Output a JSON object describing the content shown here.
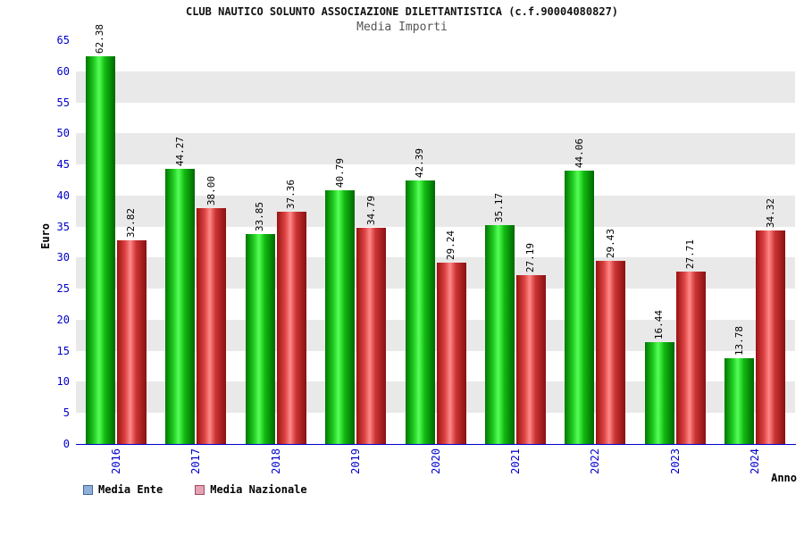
{
  "title": "CLUB NAUTICO SOLUNTO ASSOCIAZIONE DILETTANTISTICA (c.f.90004080827)",
  "subtitle": "Media Importi",
  "axes": {
    "y_label": "Euro",
    "x_label": "Anno",
    "tick_color": "#0000cc",
    "axis_line_color": "#0000cc"
  },
  "legend": [
    {
      "label": "Media Ente",
      "swatch_fill": "#8fb0d8",
      "swatch_border": "#44669a"
    },
    {
      "label": "Media Nazionale",
      "swatch_fill": "#e3a3b3",
      "swatch_border": "#a04a62"
    }
  ],
  "chart_data": {
    "type": "bar",
    "categories": [
      "2016",
      "2017",
      "2018",
      "2019",
      "2020",
      "2021",
      "2022",
      "2023",
      "2024"
    ],
    "series": [
      {
        "name": "Media Ente",
        "color": "#00cc00",
        "values": [
          62.38,
          44.27,
          33.85,
          40.79,
          42.39,
          35.17,
          44.06,
          16.44,
          13.78
        ]
      },
      {
        "name": "Media Nazionale",
        "color": "#dd4444",
        "values": [
          32.82,
          38.0,
          37.36,
          34.79,
          29.24,
          27.19,
          29.43,
          27.71,
          34.32
        ]
      }
    ],
    "title": "Media Importi",
    "xlabel": "Anno",
    "ylabel": "Euro",
    "ylim": [
      0,
      65
    ],
    "y_tick_step": 5,
    "grid_bands": true,
    "band_color_alt": "#e9e9e9",
    "legend_position": "bottom"
  }
}
